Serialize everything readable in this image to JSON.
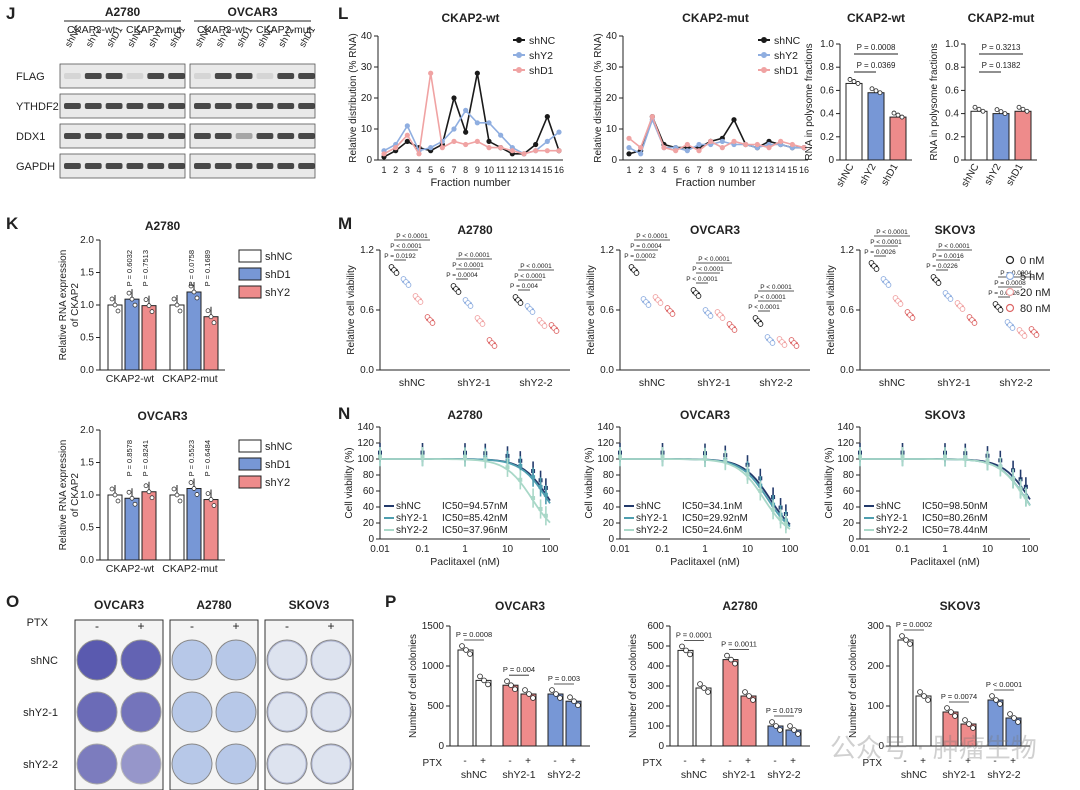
{
  "palette": {
    "c_black": "#1a1a1a",
    "c_blue": "#8faee0",
    "c_pink": "#f0a3a3",
    "c_navy": "#233a6b",
    "c_teal": "#4f9fb0",
    "c_mint": "#a9d8c8",
    "bar_blue": "#7797d6",
    "bar_pink": "#ee8b8b",
    "blot_bg": "#e9e9e9",
    "band": "#2b2b2b",
    "dish_violet": "#4a4aa8",
    "dish_light": "#b7c8e8"
  },
  "panelJ": {
    "label": "J",
    "groups": [
      "A2780",
      "OVCAR3"
    ],
    "subgroups": [
      "CKAP2-wt",
      "CKAP2-mut",
      "CKAP2-wt",
      "CKAP2-mut"
    ],
    "lanes": [
      "shNC",
      "shY2",
      "shD1",
      "shNC",
      "shY2",
      "shD1"
    ],
    "proteins": [
      "FLAG",
      "YTHDF2",
      "DDX1",
      "GAPDH"
    ]
  },
  "panelL": {
    "label": "L",
    "line": [
      {
        "title": "CKAP2-wt",
        "ylabel": "Relative distribution (% RNA)",
        "xlabel": "Fraction number",
        "ylim": [
          0,
          40
        ],
        "yticks": [
          "0",
          "10",
          "20",
          "30",
          "40"
        ],
        "xticks": [
          "1",
          "2",
          "3",
          "4",
          "5",
          "6",
          "7",
          "8",
          "9",
          "10",
          "11",
          "12",
          "13",
          "14",
          "15",
          "16"
        ],
        "series": [
          {
            "name": "shNC",
            "values": [
              1,
              3,
              6,
              4,
              3,
              5,
              20,
              9,
              28,
              6,
              4,
              2,
              2,
              5,
              14,
              3
            ]
          },
          {
            "name": "shY2",
            "values": [
              3,
              5,
              11,
              3,
              4,
              6,
              10,
              16,
              12,
              12,
              8,
              4,
              2,
              3,
              6,
              9
            ]
          },
          {
            "name": "shD1",
            "values": [
              2,
              4,
              8,
              2,
              28,
              4,
              6,
              5,
              6,
              4,
              4,
              3,
              2,
              3,
              3,
              3
            ]
          }
        ]
      },
      {
        "title": "CKAP2-mut",
        "ylabel": "Relative distribution (% RNA)",
        "xlabel": "Fraction number",
        "ylim": [
          0,
          40
        ],
        "yticks": [
          "0",
          "10",
          "20",
          "30",
          "40"
        ],
        "xticks": [
          "1",
          "2",
          "3",
          "4",
          "5",
          "6",
          "7",
          "8",
          "9",
          "10",
          "11",
          "12",
          "13",
          "14",
          "15",
          "16"
        ],
        "series": [
          {
            "name": "shNC",
            "values": [
              2,
              3,
              14,
              5,
              4,
              4,
              4,
              6,
              7,
              13,
              5,
              4,
              6,
              5,
              4,
              4
            ]
          },
          {
            "name": "shY2",
            "values": [
              4,
              2,
              13,
              4,
              4,
              3,
              5,
              5,
              6,
              5,
              5,
              4,
              5,
              5,
              4,
              4
            ]
          },
          {
            "name": "shD1",
            "values": [
              7,
              4,
              14,
              4,
              3,
              5,
              3,
              6,
              4,
              6,
              5,
              5,
              4,
              6,
              5,
              4
            ]
          }
        ]
      }
    ],
    "bars": [
      {
        "title": "CKAP2-wt",
        "ylabel": "RNA in polysome fractions",
        "ylim": [
          0,
          1.0
        ],
        "yticks": [
          "0",
          "0.2",
          "0.4",
          "0.6",
          "0.8",
          "1.0"
        ],
        "categories": [
          "shNC",
          "shY2",
          "shD1"
        ],
        "values": [
          0.66,
          0.58,
          0.37
        ],
        "p": [
          "P = 0.0369",
          "P = 0.0008"
        ]
      },
      {
        "title": "CKAP2-mut",
        "ylabel": "RNA in polysome fractions",
        "ylim": [
          0,
          1.0
        ],
        "yticks": [
          "0",
          "0.2",
          "0.4",
          "0.6",
          "0.8",
          "1.0"
        ],
        "categories": [
          "shNC",
          "shY2",
          "shD1"
        ],
        "values": [
          0.42,
          0.4,
          0.42
        ],
        "p": [
          "P = 0.1382",
          "P = 0.3213"
        ]
      }
    ]
  },
  "panelK": {
    "label": "K",
    "legend": [
      "shNC",
      "shD1",
      "shY2"
    ],
    "xcats": [
      "CKAP2-wt",
      "CKAP2-mut"
    ],
    "ylabel": "Relative RNA expression of CKAP2",
    "yticks": [
      "0.0",
      "0.5",
      "1.0",
      "1.5",
      "2.0"
    ],
    "ylim": [
      0,
      2
    ],
    "charts": [
      {
        "title": "A2780",
        "values": [
          1.0,
          1.09,
          0.99,
          1.0,
          1.2,
          0.82
        ],
        "p": [
          "P = 0.6032",
          "P = 0.7513",
          "P = 0.0758",
          "P = 0.1689"
        ]
      },
      {
        "title": "OVCAR3",
        "values": [
          1.0,
          0.95,
          1.05,
          1.0,
          1.1,
          0.93
        ],
        "p": [
          "P = 0.8578",
          "P = 0.8241",
          "P = 0.5523",
          "P = 0.6484"
        ]
      }
    ]
  },
  "panelM": {
    "label": "M",
    "legend": [
      "0 nM",
      "5 nM",
      "20 nM",
      "80 nM"
    ],
    "ylabel": "Relative cell viability",
    "yticks": [
      "0.0",
      "0.6",
      "1.2"
    ],
    "ylim": [
      0,
      1.2
    ],
    "categories": [
      "shNC",
      "shY2-1",
      "shY2-2"
    ],
    "charts": [
      {
        "title": "A2780",
        "values": [
          [
            1.0,
            0.88,
            0.71,
            0.5
          ],
          [
            0.81,
            0.67,
            0.49,
            0.27
          ],
          [
            0.7,
            0.61,
            0.47,
            0.42
          ]
        ],
        "p": [
          [
            "P = 0.0192",
            "P < 0.0001",
            "P < 0.0001"
          ],
          [
            "P = 0.0004",
            "P < 0.0001",
            "P < 0.0001"
          ],
          [
            "P = 0.004",
            "P < 0.0001",
            "P < 0.0001"
          ]
        ]
      },
      {
        "title": "OVCAR3",
        "values": [
          [
            1.0,
            0.68,
            0.7,
            0.59
          ],
          [
            0.77,
            0.57,
            0.55,
            0.43
          ],
          [
            0.49,
            0.3,
            0.28,
            0.27
          ]
        ],
        "p": [
          [
            "P = 0.0002",
            "P = 0.0004",
            "P < 0.0001"
          ],
          [
            "P < 0.0001",
            "P < 0.0001",
            "P < 0.0001"
          ],
          [
            "P < 0.0001",
            "P < 0.0001",
            "P < 0.0001"
          ]
        ]
      },
      {
        "title": "SKOV3",
        "values": [
          [
            1.04,
            0.88,
            0.69,
            0.55
          ],
          [
            0.9,
            0.74,
            0.64,
            0.5
          ],
          [
            0.63,
            0.45,
            0.37,
            0.38
          ]
        ],
        "p": [
          [
            "P = 0.0026",
            "P < 0.0001",
            "P < 0.0001"
          ],
          [
            "P = 0.0226",
            "P = 0.0016",
            "P < 0.0001"
          ],
          [
            "P = 0.0026",
            "P = 0.0008",
            "P = 0.0004"
          ]
        ]
      }
    ]
  },
  "panelN": {
    "label": "N",
    "ylabel": "Cell viability (%)",
    "xlabel": "Paclitaxel (nM)",
    "yticks": [
      "0",
      "20",
      "40",
      "60",
      "80",
      "100",
      "120",
      "140"
    ],
    "xticks": [
      "0.01",
      "0.1",
      "1",
      "10",
      "100"
    ],
    "charts": [
      {
        "title": "A2780",
        "ic50": [
          "IC50=94.57nM",
          "IC50=85.42nM",
          "IC50=37.96nM"
        ],
        "ic": [
          94.57,
          85.42,
          37.96
        ]
      },
      {
        "title": "OVCAR3",
        "ic50": [
          "IC50=34.1nM",
          "IC50=29.92nM",
          "IC50=24.6nM"
        ],
        "ic": [
          34.1,
          29.92,
          24.6
        ]
      },
      {
        "title": "SKOV3",
        "ic50": [
          "IC50=98.50nM",
          "IC50=80.26nM",
          "IC50=78.44nM"
        ],
        "ic": [
          98.5,
          80.26,
          78.44
        ]
      }
    ],
    "series": [
      "shNC",
      "shY2-1",
      "shY2-2"
    ]
  },
  "panelO": {
    "label": "O",
    "lines": [
      "OVCAR3",
      "A2780",
      "SKOV3"
    ],
    "ptx_label": "PTX",
    "signs": [
      "-",
      "+"
    ],
    "rows": [
      "shNC",
      "shY2-1",
      "shY2-2"
    ]
  },
  "panelP": {
    "label": "P",
    "ylabel": "Number of cell colonies",
    "ptx_label": "PTX",
    "signs": [
      "-",
      "+"
    ],
    "categories": [
      "shNC",
      "shY2-1",
      "shY2-2"
    ],
    "charts": [
      {
        "title": "OVCAR3",
        "ylim": [
          0,
          1500
        ],
        "yticks": [
          "0",
          "500",
          "1000",
          "1500"
        ],
        "values": [
          1200,
          820,
          760,
          650,
          650,
          560
        ],
        "p": [
          "P = 0.0008",
          "P = 0.004",
          "P = 0.003"
        ]
      },
      {
        "title": "A2780",
        "ylim": [
          0,
          600
        ],
        "yticks": [
          "0",
          "100",
          "200",
          "300",
          "400",
          "500",
          "600"
        ],
        "values": [
          478,
          290,
          432,
          250,
          100,
          80
        ],
        "p": [
          "P = 0.0001",
          "P = 0.0011",
          "P = 0.0179"
        ]
      },
      {
        "title": "SKOV3",
        "ylim": [
          0,
          300
        ],
        "yticks": [
          "0",
          "100",
          "200",
          "300"
        ],
        "values": [
          265,
          125,
          85,
          55,
          115,
          70
        ],
        "p": [
          "P = 0.0002",
          "P = 0.0074",
          "P < 0.0001"
        ]
      }
    ]
  },
  "watermark": "公众号 · 肿瘤生物"
}
